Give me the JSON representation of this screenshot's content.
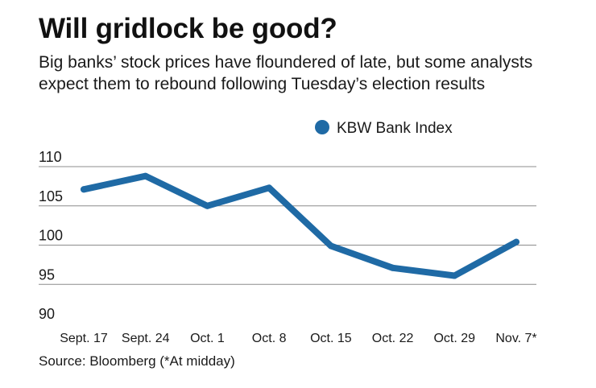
{
  "header": {
    "title": "Will gridlock be good?",
    "subtitle": "Big banks’ stock prices have floundered of late, but some analysts expect them to rebound following Tuesday’s election results"
  },
  "footer": {
    "source": "Source: Bloomberg (*At midday)"
  },
  "chart_data": {
    "type": "line",
    "title": "Will gridlock be good?",
    "subtitle": "Big banks’ stock prices have floundered of late, but some analysts expect them to rebound following Tuesday’s election results",
    "xlabel": "",
    "ylabel": "",
    "categories": [
      "Sept. 17",
      "Sept. 24",
      "Oct. 1",
      "Oct. 8",
      "Oct. 15",
      "Oct. 22",
      "Oct. 29",
      "Nov. 7*"
    ],
    "series": [
      {
        "name": "KBW Bank Index",
        "color": "#1f6aa5",
        "values": [
          107.1,
          108.8,
          105.0,
          107.3,
          99.9,
          97.1,
          96.1,
          100.4
        ]
      }
    ],
    "ylim": [
      90,
      110
    ],
    "yticks": [
      90,
      95,
      100,
      105,
      110
    ],
    "grid": "horizontal",
    "legend": "top-right",
    "gridline_color": "#8c8c8c"
  }
}
